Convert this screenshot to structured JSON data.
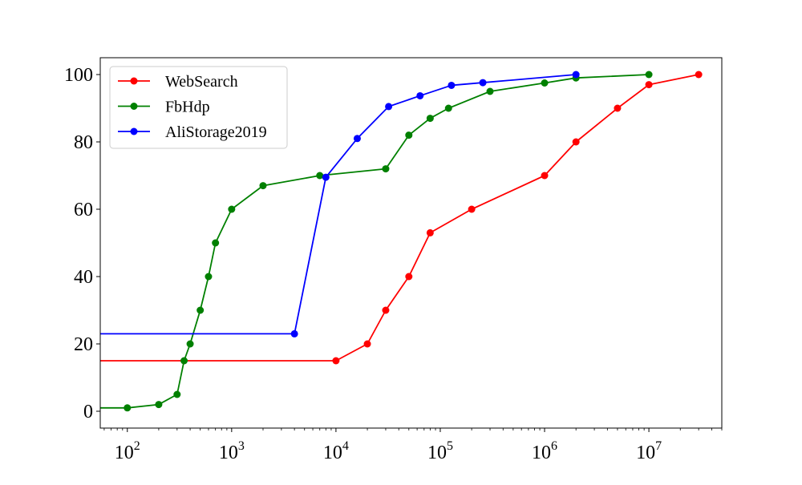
{
  "chart_data": {
    "type": "line",
    "x_scale": "log",
    "xlim": [
      55,
      50000000
    ],
    "ylim": [
      -5,
      105
    ],
    "xticks": [
      {
        "value": 100,
        "base": "10",
        "exp": "2"
      },
      {
        "value": 1000,
        "base": "10",
        "exp": "3"
      },
      {
        "value": 10000,
        "base": "10",
        "exp": "4"
      },
      {
        "value": 100000,
        "base": "10",
        "exp": "5"
      },
      {
        "value": 1000000,
        "base": "10",
        "exp": "6"
      },
      {
        "value": 10000000,
        "base": "10",
        "exp": "7"
      }
    ],
    "yticks": [
      0,
      20,
      40,
      60,
      80,
      100
    ],
    "grid": false,
    "legend_position": "top-left",
    "series": [
      {
        "name": "WebSearch",
        "color": "#ff0000",
        "extend_left": true,
        "x": [
          10000,
          20000,
          30000,
          50000,
          80000,
          200000,
          1000000,
          2000000,
          5000000,
          10000000,
          30000000
        ],
        "y": [
          15,
          20,
          30,
          40,
          53,
          60,
          70,
          80,
          90,
          97,
          100
        ]
      },
      {
        "name": "FbHdp",
        "color": "#008000",
        "extend_left": true,
        "x": [
          100,
          200,
          300,
          350,
          400,
          500,
          600,
          700,
          1000,
          2000,
          7000,
          30000,
          50000,
          80000,
          120000,
          300000,
          1000000,
          2000000,
          10000000
        ],
        "y": [
          1,
          2,
          5,
          15,
          20,
          30,
          40,
          50,
          60,
          67,
          70,
          72,
          82,
          87,
          90,
          95,
          97.5,
          99,
          100
        ]
      },
      {
        "name": "AliStorage2019",
        "color": "#0000ff",
        "extend_left": true,
        "x": [
          4000,
          8000,
          16000,
          32000,
          64000,
          128000,
          256000,
          2000000
        ],
        "y": [
          23,
          69.5,
          81,
          90.5,
          93.7,
          96.8,
          97.6,
          100
        ]
      }
    ]
  }
}
